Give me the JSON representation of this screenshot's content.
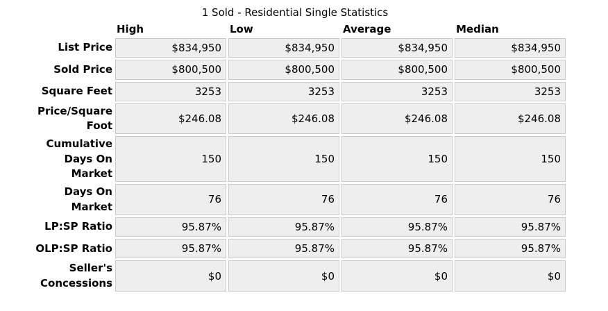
{
  "title": "1 Sold - Residential Single Statistics",
  "table": {
    "columns": [
      "High",
      "Low",
      "Average",
      "Median"
    ],
    "rows": [
      {
        "label": "List Price",
        "values": [
          "$834,950",
          "$834,950",
          "$834,950",
          "$834,950"
        ]
      },
      {
        "label": "Sold Price",
        "values": [
          "$800,500",
          "$800,500",
          "$800,500",
          "$800,500"
        ]
      },
      {
        "label": "Square Feet",
        "values": [
          "3253",
          "3253",
          "3253",
          "3253"
        ]
      },
      {
        "label": "Price/Square\nFoot",
        "values": [
          "$246.08",
          "$246.08",
          "$246.08",
          "$246.08"
        ]
      },
      {
        "label": "Cumulative\nDays On\nMarket",
        "values": [
          "150",
          "150",
          "150",
          "150"
        ]
      },
      {
        "label": "Days On\nMarket",
        "values": [
          "76",
          "76",
          "76",
          "76"
        ]
      },
      {
        "label": "LP:SP Ratio",
        "values": [
          "95.87%",
          "95.87%",
          "95.87%",
          "95.87%"
        ]
      },
      {
        "label": "OLP:SP Ratio",
        "values": [
          "95.87%",
          "95.87%",
          "95.87%",
          "95.87%"
        ]
      },
      {
        "label": "Seller's\nConcessions",
        "values": [
          "$0",
          "$0",
          "$0",
          "$0"
        ]
      }
    ],
    "colors": {
      "cell_background": "#eeeeee",
      "cell_border": "#c9c9c9",
      "text": "#000000",
      "page_background": "#ffffff"
    }
  }
}
